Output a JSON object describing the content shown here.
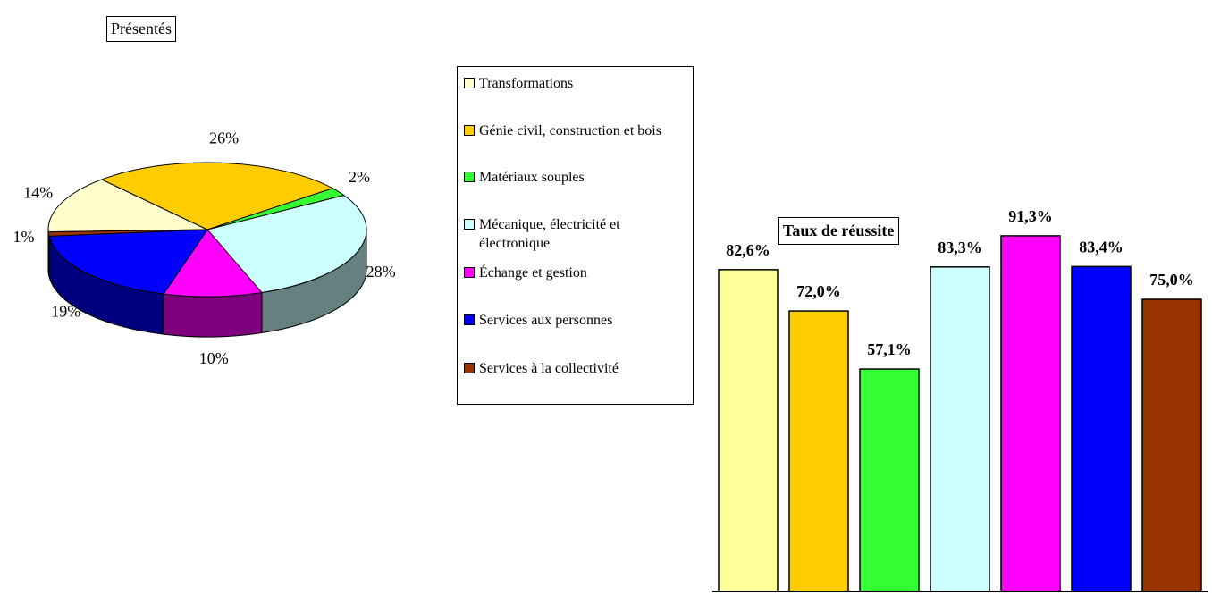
{
  "chart_data": [
    {
      "type": "pie",
      "title": "Présentés",
      "categories": [
        "Transformations",
        "Génie civil, construction et bois",
        "Matériaux souples",
        "Mécanique, électricité et électronique",
        "Échange et gestion",
        "Services aux personnes",
        "Services à la collectivité"
      ],
      "values": [
        14,
        26,
        2,
        28,
        10,
        19,
        1
      ],
      "value_labels": [
        "14%",
        "26%",
        "2%",
        "28%",
        "10%",
        "19%",
        "1%"
      ],
      "colors": [
        "#ffffcc",
        "#ffcc00",
        "#33ff33",
        "#ccffff",
        "#ff00ff",
        "#0000ff",
        "#993300"
      ],
      "legend": "right"
    },
    {
      "type": "bar",
      "title": "Taux de réussite",
      "values": [
        82.6,
        72.0,
        57.1,
        83.3,
        91.3,
        83.4,
        75.0
      ],
      "value_labels": [
        "82,6%",
        "72,0%",
        "57,1%",
        "83,3%",
        "91,3%",
        "83,4%",
        "75,0%"
      ],
      "colors": [
        "#ffff99",
        "#ffcc00",
        "#33ff33",
        "#ccffff",
        "#ff00ff",
        "#0000ff",
        "#993300"
      ],
      "ylim": [
        0,
        100
      ]
    }
  ]
}
